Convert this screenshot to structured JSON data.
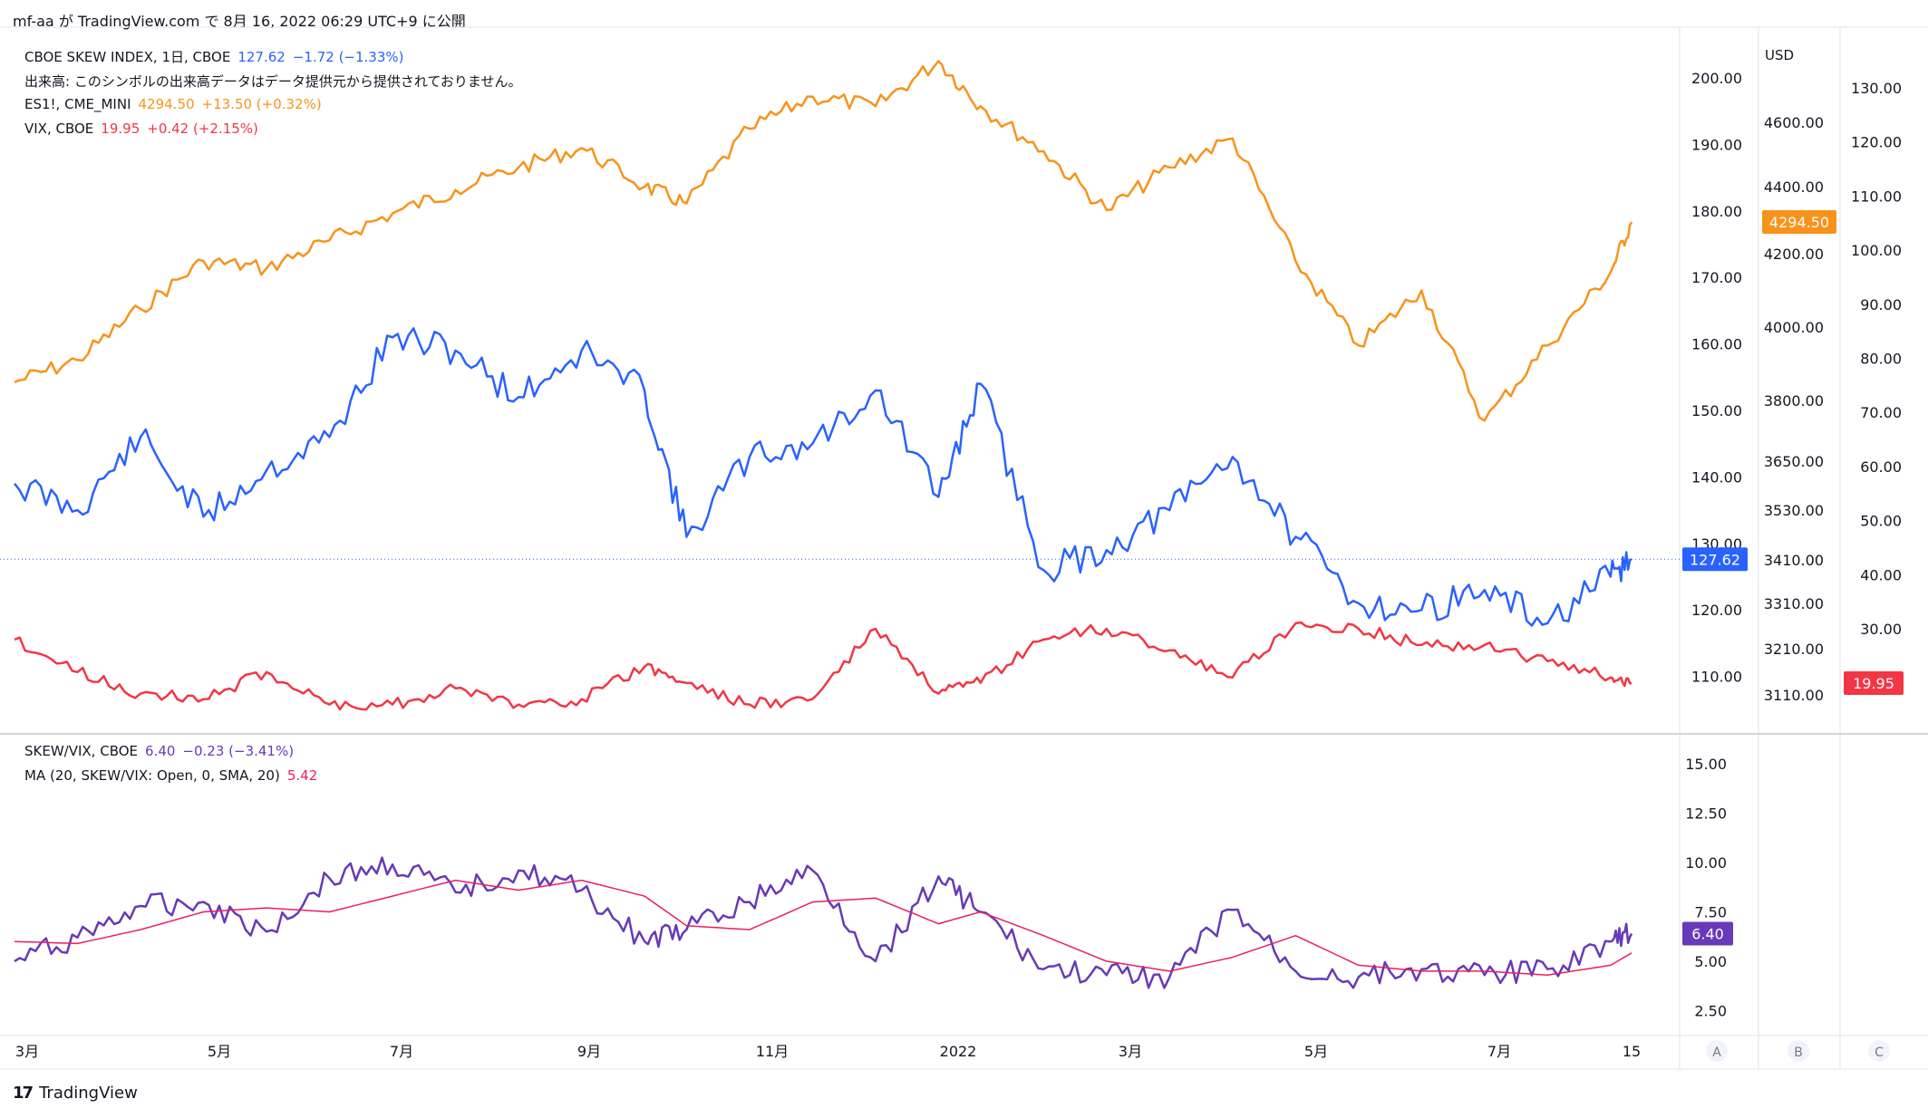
{
  "header": {
    "publish_text": "mf-aa が TradingView.com で 8月 16, 2022 06:29 UTC+9 に公開"
  },
  "footer": {
    "brand": "TradingView",
    "logo": "17"
  },
  "legend": {
    "skew": {
      "name": "CBOE SKEW INDEX, 1日, CBOE",
      "value": "127.62",
      "change": "−1.72 (−1.33%)",
      "color": "#2962ff"
    },
    "volume_note": "出来高: このシンボルの出来高データはデータ提供元から提供されておりません。",
    "es": {
      "name": "ES1!, CME_MINI",
      "value": "4294.50",
      "change": "+13.50 (+0.32%)",
      "color": "#f7931a"
    },
    "vix": {
      "name": "VIX, CBOE",
      "value": "19.95",
      "change": "+0.42 (+2.15%)",
      "color": "#f23645"
    },
    "ratio": {
      "name": "SKEW/VIX, CBOE",
      "value": "6.40",
      "change": "−0.23 (−3.41%)",
      "color": "#673ab7"
    },
    "ma": {
      "name": "MA (20, SKEW/VIX: Open, 0, SMA, 20)",
      "value": "5.42",
      "color": "#e91e63"
    }
  },
  "scales": {
    "usd_label": "USD",
    "skew_ticks": [
      "200.00",
      "190.00",
      "180.00",
      "170.00",
      "160.00",
      "150.00",
      "140.00",
      "130.00",
      "120.00",
      "110.00"
    ],
    "es_ticks": [
      "4600.00",
      "4400.00",
      "4200.00",
      "4000.00",
      "3800.00",
      "3650.00",
      "3530.00",
      "3410.00",
      "3310.00",
      "3210.00",
      "3110.00"
    ],
    "vix_ticks": [
      "130.00",
      "120.00",
      "110.00",
      "100.00",
      "90.00",
      "80.00",
      "70.00",
      "60.00",
      "50.00",
      "40.00",
      "30.00"
    ],
    "ratio_ticks": [
      "15.00",
      "12.50",
      "10.00",
      "7.50",
      "5.00",
      "2.50"
    ],
    "time_ticks": [
      "3月",
      "5月",
      "7月",
      "9月",
      "11月",
      "2022",
      "3月",
      "5月",
      "7月",
      "15"
    ],
    "pane_buttons": [
      "A",
      "B",
      "C"
    ]
  },
  "chart_data": [
    {
      "type": "line",
      "title": "CBOE SKEW INDEX, 1日, CBOE",
      "x_range": [
        "2021-02-22",
        "2022-08-15"
      ],
      "ylim": [
        105,
        205
      ],
      "series": [
        {
          "name": "CBOE SKEW INDEX, 1日, CBOE",
          "color": "#2962ff",
          "axis": "left-price",
          "x": [
            "2021-02-22",
            "2021-03-15",
            "2021-04-05",
            "2021-04-26",
            "2021-05-17",
            "2021-06-07",
            "2021-06-28",
            "2021-07-19",
            "2021-08-09",
            "2021-08-30",
            "2021-09-20",
            "2021-10-04",
            "2021-10-25",
            "2021-11-15",
            "2021-12-06",
            "2021-12-27",
            "2022-01-10",
            "2022-01-31",
            "2022-02-21",
            "2022-03-14",
            "2022-04-04",
            "2022-04-25",
            "2022-05-16",
            "2022-06-06",
            "2022-06-27",
            "2022-07-18",
            "2022-08-08",
            "2022-08-15"
          ],
          "values": [
            139,
            135,
            146,
            134,
            141,
            146,
            161,
            159,
            152,
            159,
            153,
            131,
            143,
            145,
            153,
            137,
            154,
            126,
            129,
            135,
            143,
            131,
            121,
            120,
            123,
            118,
            125,
            127.62
          ]
        },
        {
          "name": "ES1!, CME_MINI",
          "color": "#f7931a",
          "axis": "ES",
          "x": [
            "2021-02-22",
            "2021-03-15",
            "2021-04-05",
            "2021-04-26",
            "2021-05-17",
            "2021-06-07",
            "2021-06-28",
            "2021-07-19",
            "2021-08-09",
            "2021-08-30",
            "2021-09-20",
            "2021-10-04",
            "2021-10-25",
            "2021-11-15",
            "2021-12-06",
            "2021-12-27",
            "2022-01-10",
            "2022-01-31",
            "2022-02-21",
            "2022-03-14",
            "2022-04-04",
            "2022-04-25",
            "2022-05-16",
            "2022-06-06",
            "2022-06-27",
            "2022-07-18",
            "2022-08-08",
            "2022-08-15"
          ],
          "values": [
            3850,
            3910,
            4050,
            4180,
            4160,
            4240,
            4320,
            4390,
            4460,
            4520,
            4400,
            4350,
            4580,
            4680,
            4650,
            4790,
            4650,
            4510,
            4330,
            4460,
            4550,
            4180,
            3950,
            4100,
            3750,
            3950,
            4150,
            4294.5
          ]
        },
        {
          "name": "VIX, CBOE",
          "color": "#f23645",
          "axis": "VIX",
          "x": [
            "2021-02-22",
            "2021-03-15",
            "2021-04-05",
            "2021-04-26",
            "2021-05-17",
            "2021-06-07",
            "2021-06-28",
            "2021-07-19",
            "2021-08-09",
            "2021-08-30",
            "2021-09-20",
            "2021-10-04",
            "2021-10-25",
            "2021-11-15",
            "2021-12-06",
            "2021-12-27",
            "2022-01-10",
            "2022-01-31",
            "2022-02-21",
            "2022-03-14",
            "2022-04-04",
            "2022-04-25",
            "2022-05-16",
            "2022-06-06",
            "2022-06-27",
            "2022-07-18",
            "2022-08-08",
            "2022-08-15"
          ],
          "values": [
            28,
            22,
            18,
            17,
            22,
            16,
            16,
            19,
            16,
            17,
            23,
            20,
            16,
            17,
            30,
            18,
            20,
            28,
            30,
            26,
            21,
            31,
            30,
            27,
            27,
            24,
            21,
            19.95
          ]
        }
      ]
    },
    {
      "type": "line",
      "title": "SKEW/VIX, CBOE",
      "x_range": [
        "2021-02-22",
        "2022-08-15"
      ],
      "ylim": [
        1.5,
        16.5
      ],
      "series": [
        {
          "name": "SKEW/VIX, CBOE",
          "color": "#673ab7",
          "x": [
            "2021-02-22",
            "2021-03-15",
            "2021-04-05",
            "2021-04-26",
            "2021-05-17",
            "2021-06-07",
            "2021-06-28",
            "2021-07-19",
            "2021-08-09",
            "2021-08-30",
            "2021-09-20",
            "2021-10-04",
            "2021-10-25",
            "2021-11-15",
            "2021-12-06",
            "2021-12-27",
            "2022-01-10",
            "2022-01-31",
            "2022-02-21",
            "2022-03-14",
            "2022-04-04",
            "2022-04-25",
            "2022-05-16",
            "2022-06-06",
            "2022-06-27",
            "2022-07-18",
            "2022-08-08",
            "2022-08-15"
          ],
          "values": [
            5.0,
            6.2,
            7.8,
            8.0,
            6.5,
            9.2,
            9.9,
            8.5,
            9.6,
            8.6,
            6.0,
            6.6,
            8.0,
            9.6,
            5.0,
            9.3,
            7.5,
            4.6,
            4.3,
            4.2,
            7.6,
            4.5,
            4.2,
            4.6,
            4.3,
            4.6,
            6.0,
            6.4
          ]
        },
        {
          "name": "MA (20, SKEW/VIX: Open, 0, SMA, 20)",
          "color": "#e91e63",
          "x": [
            "2021-02-22",
            "2021-03-15",
            "2021-04-05",
            "2021-04-26",
            "2021-05-17",
            "2021-06-07",
            "2021-06-28",
            "2021-07-19",
            "2021-08-09",
            "2021-08-30",
            "2021-09-20",
            "2021-10-04",
            "2021-10-25",
            "2021-11-15",
            "2021-12-06",
            "2021-12-27",
            "2022-01-10",
            "2022-01-31",
            "2022-02-21",
            "2022-03-14",
            "2022-04-04",
            "2022-04-25",
            "2022-05-16",
            "2022-06-06",
            "2022-06-27",
            "2022-07-18",
            "2022-08-08",
            "2022-08-15"
          ],
          "values": [
            6.0,
            5.9,
            6.6,
            7.5,
            7.7,
            7.5,
            8.3,
            9.1,
            8.6,
            9.1,
            8.3,
            6.8,
            6.6,
            8.0,
            8.2,
            6.9,
            7.5,
            6.3,
            5.0,
            4.5,
            5.2,
            6.3,
            4.8,
            4.5,
            4.5,
            4.3,
            4.8,
            5.42
          ]
        }
      ]
    }
  ]
}
